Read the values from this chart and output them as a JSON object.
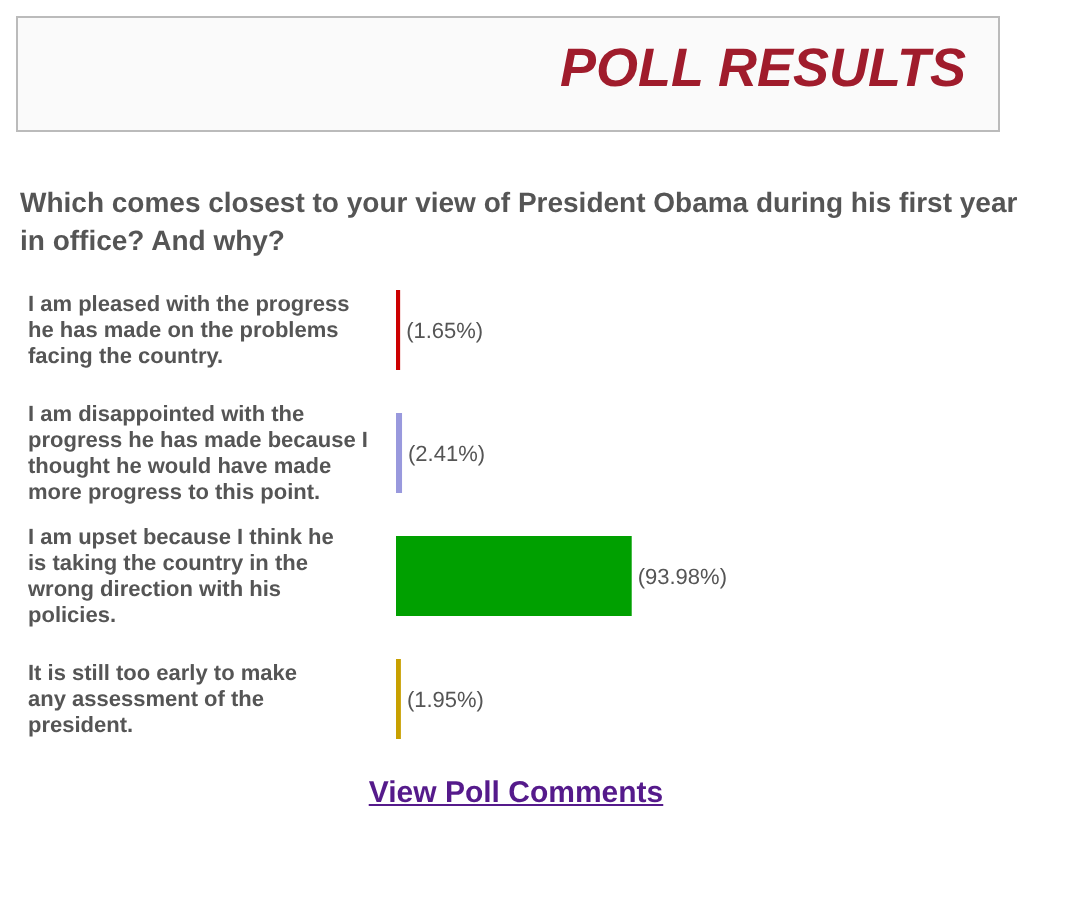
{
  "chart_data": {
    "type": "bar",
    "orientation": "horizontal",
    "title": "POLL RESULTS",
    "subtitle": "Which comes closest to your view of President Obama during his first year in office? And why?",
    "categories": [
      "I am pleased with the progress he has made on the problems facing the country.",
      "I am disappointed with the progress he has made because I thought he would have made more progress to this point.",
      "I am upset because I think he is taking the country in the wrong direction with his policies.",
      "It is still too early to make any assessment of the president."
    ],
    "values": [
      1.65,
      2.41,
      93.98,
      1.95
    ],
    "colors": [
      "#cc0000",
      "#9999dd",
      "#00a000",
      "#c8a000"
    ],
    "value_labels": [
      "(1.65%)",
      "(2.41%)",
      "(93.98%)",
      "(1.95%)"
    ],
    "annotations": [
      "View Poll Comments"
    ]
  }
}
